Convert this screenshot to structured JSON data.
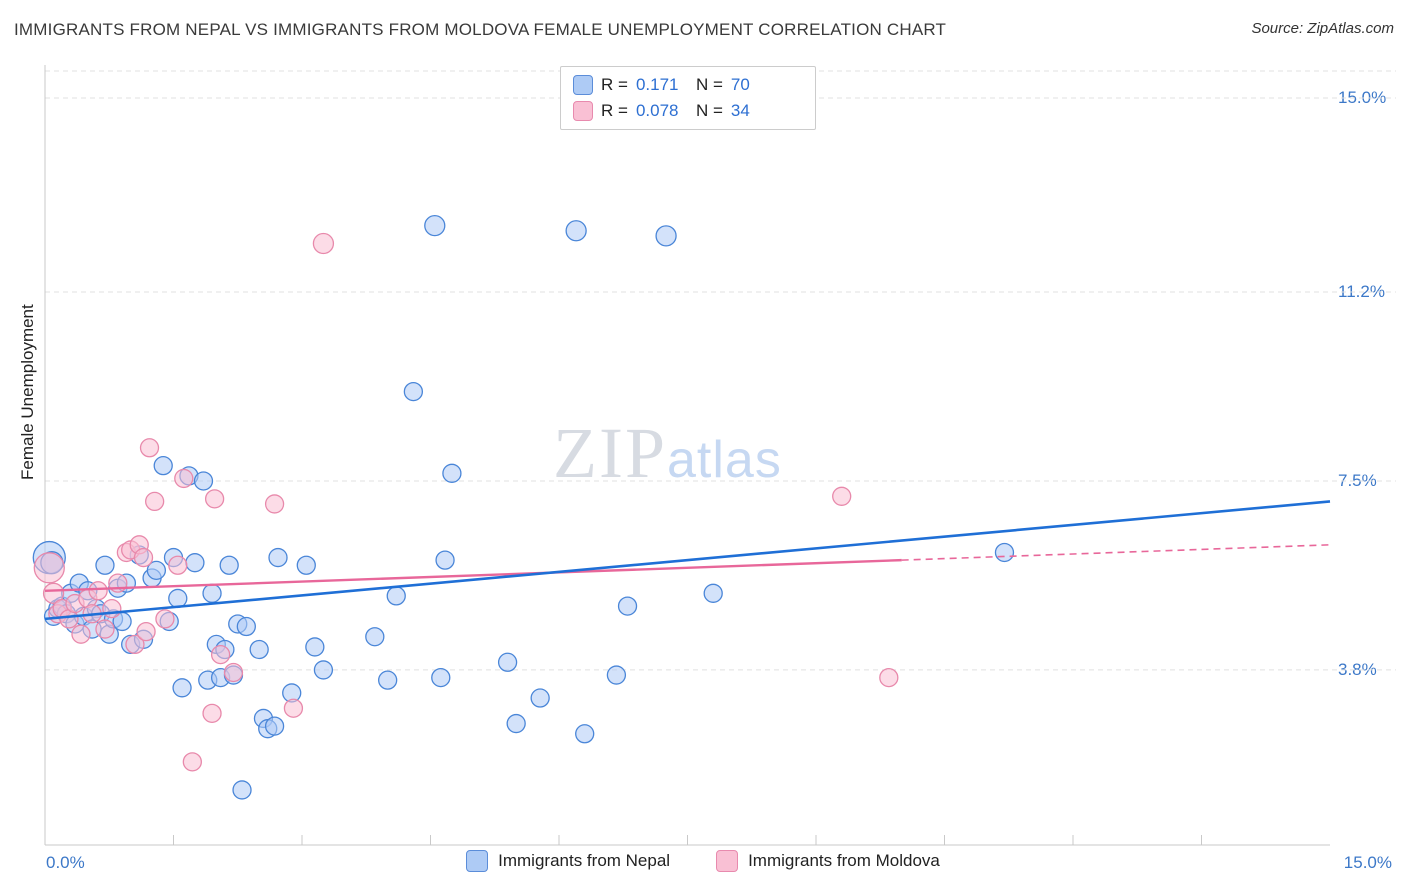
{
  "header": {
    "title": "IMMIGRANTS FROM NEPAL VS IMMIGRANTS FROM MOLDOVA FEMALE UNEMPLOYMENT CORRELATION CHART",
    "source": "Source: ZipAtlas.com"
  },
  "watermark": {
    "part1": "ZIP",
    "part2": "atlas"
  },
  "legend": {
    "nepal": {
      "r_label": "R =",
      "r_value": "0.171",
      "n_label": "N =",
      "n_value": "70"
    },
    "moldova": {
      "r_label": "R =",
      "r_value": "0.078",
      "n_label": "N =",
      "n_value": "34"
    }
  },
  "axes": {
    "y_label": "Female Unemployment",
    "x_min_label": "0.0%",
    "x_max_label": "15.0%"
  },
  "bottom_legend": {
    "nepal": "Immigrants from Nepal",
    "moldova": "Immigrants from Moldova"
  },
  "colors": {
    "nepal_fill": "#aecbf5",
    "nepal_stroke": "#4a86d8",
    "nepal_line": "#1f6fd6",
    "moldova_fill": "#f9c0d4",
    "moldova_stroke": "#e889ab",
    "moldova_line": "#e8679a",
    "grid": "#e0e0e0",
    "axis": "#c9c9c9",
    "tick_text": "#3c78c8"
  },
  "chart_data": {
    "type": "scatter",
    "title": "Immigrants from Nepal vs Immigrants from Moldova Female Unemployment",
    "xlabel": "",
    "ylabel": "Female Unemployment",
    "xlim": [
      0,
      15
    ],
    "ylim": [
      0,
      15.6
    ],
    "grid": true,
    "y_ticks": [
      {
        "value": 15.0,
        "label": "15.0%"
      },
      {
        "value": 11.2,
        "label": "11.2%"
      },
      {
        "value": 7.5,
        "label": "7.5%"
      },
      {
        "value": 3.8,
        "label": "3.8%"
      }
    ],
    "x_tick_step": 1.5,
    "series": [
      {
        "name": "Immigrants from Nepal",
        "r": 0.171,
        "n": 70,
        "points": [
          [
            0.05,
            6.0,
            16
          ],
          [
            0.08,
            5.9,
            11
          ],
          [
            0.1,
            4.85,
            9
          ],
          [
            0.15,
            5.0,
            9
          ],
          [
            0.2,
            5.05,
            9
          ],
          [
            0.25,
            4.9,
            9
          ],
          [
            0.3,
            5.3,
            9
          ],
          [
            0.35,
            4.7,
            9
          ],
          [
            0.4,
            5.5,
            9
          ],
          [
            0.45,
            4.85,
            9
          ],
          [
            0.5,
            5.35,
            9
          ],
          [
            0.55,
            4.6,
            9
          ],
          [
            0.6,
            5.0,
            9
          ],
          [
            0.65,
            4.9,
            9
          ],
          [
            0.7,
            5.85,
            9
          ],
          [
            0.75,
            4.5,
            9
          ],
          [
            0.8,
            4.8,
            9
          ],
          [
            0.85,
            5.4,
            9
          ],
          [
            0.9,
            4.75,
            9
          ],
          [
            0.95,
            5.5,
            9
          ],
          [
            1.0,
            4.3,
            9
          ],
          [
            1.1,
            6.05,
            9
          ],
          [
            1.15,
            4.4,
            9
          ],
          [
            1.25,
            5.6,
            9
          ],
          [
            1.3,
            5.75,
            9
          ],
          [
            1.38,
            7.8,
            9
          ],
          [
            1.45,
            4.75,
            9
          ],
          [
            1.5,
            6.0,
            9
          ],
          [
            1.55,
            5.2,
            9
          ],
          [
            1.6,
            3.45,
            9
          ],
          [
            1.68,
            7.6,
            9
          ],
          [
            1.75,
            5.9,
            9
          ],
          [
            1.85,
            7.5,
            9
          ],
          [
            1.9,
            3.6,
            9
          ],
          [
            1.95,
            5.3,
            9
          ],
          [
            2.0,
            4.3,
            9
          ],
          [
            2.05,
            3.65,
            9
          ],
          [
            2.1,
            4.2,
            9
          ],
          [
            2.15,
            5.85,
            9
          ],
          [
            2.2,
            3.7,
            9
          ],
          [
            2.25,
            4.7,
            9
          ],
          [
            2.3,
            1.45,
            9
          ],
          [
            2.35,
            4.65,
            9
          ],
          [
            2.5,
            4.2,
            9
          ],
          [
            2.55,
            2.85,
            9
          ],
          [
            2.6,
            2.65,
            9
          ],
          [
            2.68,
            2.7,
            9
          ],
          [
            2.72,
            6.0,
            9
          ],
          [
            2.88,
            3.35,
            9
          ],
          [
            3.05,
            5.85,
            9
          ],
          [
            3.15,
            4.25,
            9
          ],
          [
            3.25,
            3.8,
            9
          ],
          [
            3.85,
            4.45,
            9
          ],
          [
            4.0,
            3.6,
            9
          ],
          [
            4.1,
            5.25,
            9
          ],
          [
            4.3,
            9.25,
            9
          ],
          [
            4.55,
            12.5,
            10
          ],
          [
            4.62,
            3.65,
            9
          ],
          [
            4.67,
            5.95,
            9
          ],
          [
            4.75,
            7.65,
            9
          ],
          [
            5.4,
            3.95,
            9
          ],
          [
            5.5,
            2.75,
            9
          ],
          [
            5.78,
            3.25,
            9
          ],
          [
            6.2,
            12.4,
            10
          ],
          [
            6.3,
            2.55,
            9
          ],
          [
            6.67,
            3.7,
            9
          ],
          [
            6.8,
            5.05,
            9
          ],
          [
            7.25,
            12.3,
            10
          ],
          [
            7.8,
            5.3,
            9
          ],
          [
            11.2,
            6.1,
            9
          ]
        ],
        "trend": {
          "x1": 0,
          "y1": 4.8,
          "x2": 15,
          "y2": 7.1
        }
      },
      {
        "name": "Immigrants from Moldova",
        "r": 0.078,
        "n": 34,
        "points": [
          [
            0.05,
            5.8,
            15
          ],
          [
            0.1,
            5.3,
            10
          ],
          [
            0.15,
            4.9,
            9
          ],
          [
            0.2,
            5.0,
            9
          ],
          [
            0.28,
            4.8,
            9
          ],
          [
            0.35,
            5.1,
            9
          ],
          [
            0.42,
            4.5,
            9
          ],
          [
            0.5,
            5.2,
            9
          ],
          [
            0.55,
            4.9,
            9
          ],
          [
            0.62,
            5.35,
            9
          ],
          [
            0.7,
            4.6,
            9
          ],
          [
            0.78,
            5.0,
            9
          ],
          [
            0.85,
            5.5,
            9
          ],
          [
            0.95,
            6.1,
            9
          ],
          [
            1.0,
            6.15,
            9
          ],
          [
            1.05,
            4.3,
            9
          ],
          [
            1.1,
            6.25,
            9
          ],
          [
            1.15,
            6.0,
            9
          ],
          [
            1.18,
            4.55,
            9
          ],
          [
            1.22,
            8.15,
            9
          ],
          [
            1.28,
            7.1,
            9
          ],
          [
            1.4,
            4.8,
            9
          ],
          [
            1.55,
            5.85,
            9
          ],
          [
            1.62,
            7.55,
            9
          ],
          [
            1.72,
            2.0,
            9
          ],
          [
            1.95,
            2.95,
            9
          ],
          [
            1.98,
            7.15,
            9
          ],
          [
            2.05,
            4.1,
            9
          ],
          [
            2.2,
            3.75,
            9
          ],
          [
            2.68,
            7.05,
            9
          ],
          [
            2.9,
            3.05,
            9
          ],
          [
            3.25,
            12.15,
            10
          ],
          [
            9.3,
            7.2,
            9
          ],
          [
            9.85,
            3.65,
            9
          ]
        ],
        "trend": {
          "x1": 0,
          "y1": 5.35,
          "x2": 10,
          "y2": 5.95
        },
        "trend_dashed": {
          "x1": 10,
          "y1": 5.95,
          "x2": 15,
          "y2": 6.25
        }
      }
    ]
  }
}
